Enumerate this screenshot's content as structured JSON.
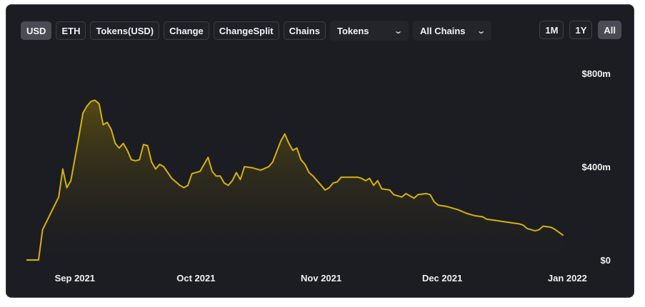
{
  "toolbar": {
    "denomination_buttons": [
      {
        "label": "USD",
        "active": true
      },
      {
        "label": "ETH",
        "active": false
      },
      {
        "label": "Tokens(USD)",
        "active": false
      },
      {
        "label": "Change",
        "active": false
      },
      {
        "label": "ChangeSplit",
        "active": false
      },
      {
        "label": "Chains",
        "active": false
      }
    ],
    "tokens_dropdown": "Tokens",
    "chains_dropdown": "All Chains",
    "range_buttons": [
      {
        "label": "1M",
        "active": false
      },
      {
        "label": "1Y",
        "active": false
      },
      {
        "label": "All",
        "active": true
      }
    ]
  },
  "colors": {
    "line": "#d4b20f",
    "fill_top": "#5e5010",
    "background": "#1b1c21",
    "accent_active": "#4a4c55"
  },
  "chart_data": {
    "type": "area",
    "title": "",
    "xlabel": "",
    "ylabel": "",
    "y_unit": "USD",
    "ylim": [
      0,
      800000000
    ],
    "y_ticks": [
      {
        "value": 0,
        "label": "$0"
      },
      {
        "value": 400000000,
        "label": "$400m"
      },
      {
        "value": 800000000,
        "label": "$800m"
      }
    ],
    "x_ticks": [
      {
        "date": "2021-09-01",
        "label": "Sep 2021"
      },
      {
        "date": "2021-10-01",
        "label": "Oct 2021"
      },
      {
        "date": "2021-11-01",
        "label": "Nov 2021"
      },
      {
        "date": "2021-12-01",
        "label": "Dec 2021"
      },
      {
        "date": "2022-01-01",
        "label": "Jan 2022"
      }
    ],
    "xlim": [
      "2021-08-20",
      "2022-01-02"
    ],
    "grid": false,
    "series": [
      {
        "points": [
          [
            "2021-08-20",
            0
          ],
          [
            "2021-08-23",
            0
          ],
          [
            "2021-08-24",
            130000000
          ],
          [
            "2021-08-26",
            200000000
          ],
          [
            "2021-08-28",
            270000000
          ],
          [
            "2021-08-29",
            390000000
          ],
          [
            "2021-08-30",
            310000000
          ],
          [
            "2021-08-31",
            340000000
          ],
          [
            "2021-09-02",
            530000000
          ],
          [
            "2021-09-03",
            630000000
          ],
          [
            "2021-09-04",
            660000000
          ],
          [
            "2021-09-05",
            680000000
          ],
          [
            "2021-09-06",
            685000000
          ],
          [
            "2021-09-07",
            670000000
          ],
          [
            "2021-09-08",
            580000000
          ],
          [
            "2021-09-09",
            590000000
          ],
          [
            "2021-09-10",
            560000000
          ],
          [
            "2021-09-11",
            500000000
          ],
          [
            "2021-09-12",
            480000000
          ],
          [
            "2021-09-13",
            500000000
          ],
          [
            "2021-09-14",
            470000000
          ],
          [
            "2021-09-15",
            430000000
          ],
          [
            "2021-09-16",
            425000000
          ],
          [
            "2021-09-17",
            430000000
          ],
          [
            "2021-09-18",
            495000000
          ],
          [
            "2021-09-19",
            490000000
          ],
          [
            "2021-09-20",
            420000000
          ],
          [
            "2021-09-21",
            390000000
          ],
          [
            "2021-09-22",
            410000000
          ],
          [
            "2021-09-23",
            400000000
          ],
          [
            "2021-09-25",
            350000000
          ],
          [
            "2021-09-27",
            320000000
          ],
          [
            "2021-09-28",
            310000000
          ],
          [
            "2021-09-29",
            320000000
          ],
          [
            "2021-09-30",
            370000000
          ],
          [
            "2021-10-02",
            380000000
          ],
          [
            "2021-10-03",
            410000000
          ],
          [
            "2021-10-04",
            440000000
          ],
          [
            "2021-10-05",
            380000000
          ],
          [
            "2021-10-06",
            360000000
          ],
          [
            "2021-10-07",
            360000000
          ],
          [
            "2021-10-08",
            330000000
          ],
          [
            "2021-10-09",
            320000000
          ],
          [
            "2021-10-10",
            340000000
          ],
          [
            "2021-10-11",
            375000000
          ],
          [
            "2021-10-12",
            345000000
          ],
          [
            "2021-10-13",
            400000000
          ],
          [
            "2021-10-15",
            395000000
          ],
          [
            "2021-10-17",
            385000000
          ],
          [
            "2021-10-19",
            400000000
          ],
          [
            "2021-10-20",
            420000000
          ],
          [
            "2021-10-22",
            510000000
          ],
          [
            "2021-10-23",
            540000000
          ],
          [
            "2021-10-24",
            500000000
          ],
          [
            "2021-10-25",
            470000000
          ],
          [
            "2021-10-26",
            480000000
          ],
          [
            "2021-10-27",
            430000000
          ],
          [
            "2021-10-28",
            410000000
          ],
          [
            "2021-10-29",
            375000000
          ],
          [
            "2021-10-30",
            360000000
          ],
          [
            "2021-10-31",
            340000000
          ],
          [
            "2021-11-01",
            320000000
          ],
          [
            "2021-11-02",
            300000000
          ],
          [
            "2021-11-03",
            310000000
          ],
          [
            "2021-11-04",
            330000000
          ],
          [
            "2021-11-05",
            335000000
          ],
          [
            "2021-11-06",
            355000000
          ],
          [
            "2021-11-08",
            355000000
          ],
          [
            "2021-11-10",
            355000000
          ],
          [
            "2021-11-11",
            350000000
          ],
          [
            "2021-11-12",
            340000000
          ],
          [
            "2021-11-13",
            350000000
          ],
          [
            "2021-11-14",
            320000000
          ],
          [
            "2021-11-15",
            340000000
          ],
          [
            "2021-11-16",
            305000000
          ],
          [
            "2021-11-18",
            300000000
          ],
          [
            "2021-11-19",
            280000000
          ],
          [
            "2021-11-21",
            270000000
          ],
          [
            "2021-11-22",
            285000000
          ],
          [
            "2021-11-24",
            265000000
          ],
          [
            "2021-11-25",
            280000000
          ],
          [
            "2021-11-27",
            285000000
          ],
          [
            "2021-11-28",
            280000000
          ],
          [
            "2021-11-29",
            250000000
          ],
          [
            "2021-11-30",
            235000000
          ],
          [
            "2021-12-02",
            230000000
          ],
          [
            "2021-12-04",
            220000000
          ],
          [
            "2021-12-05",
            215000000
          ],
          [
            "2021-12-07",
            200000000
          ],
          [
            "2021-12-09",
            190000000
          ],
          [
            "2021-12-11",
            185000000
          ],
          [
            "2021-12-12",
            175000000
          ],
          [
            "2021-12-14",
            170000000
          ],
          [
            "2021-12-16",
            165000000
          ],
          [
            "2021-12-18",
            160000000
          ],
          [
            "2021-12-20",
            155000000
          ],
          [
            "2021-12-21",
            150000000
          ],
          [
            "2021-12-22",
            135000000
          ],
          [
            "2021-12-24",
            125000000
          ],
          [
            "2021-12-25",
            130000000
          ],
          [
            "2021-12-26",
            145000000
          ],
          [
            "2021-12-28",
            140000000
          ],
          [
            "2021-12-29",
            130000000
          ],
          [
            "2021-12-31",
            105000000
          ]
        ]
      }
    ]
  }
}
